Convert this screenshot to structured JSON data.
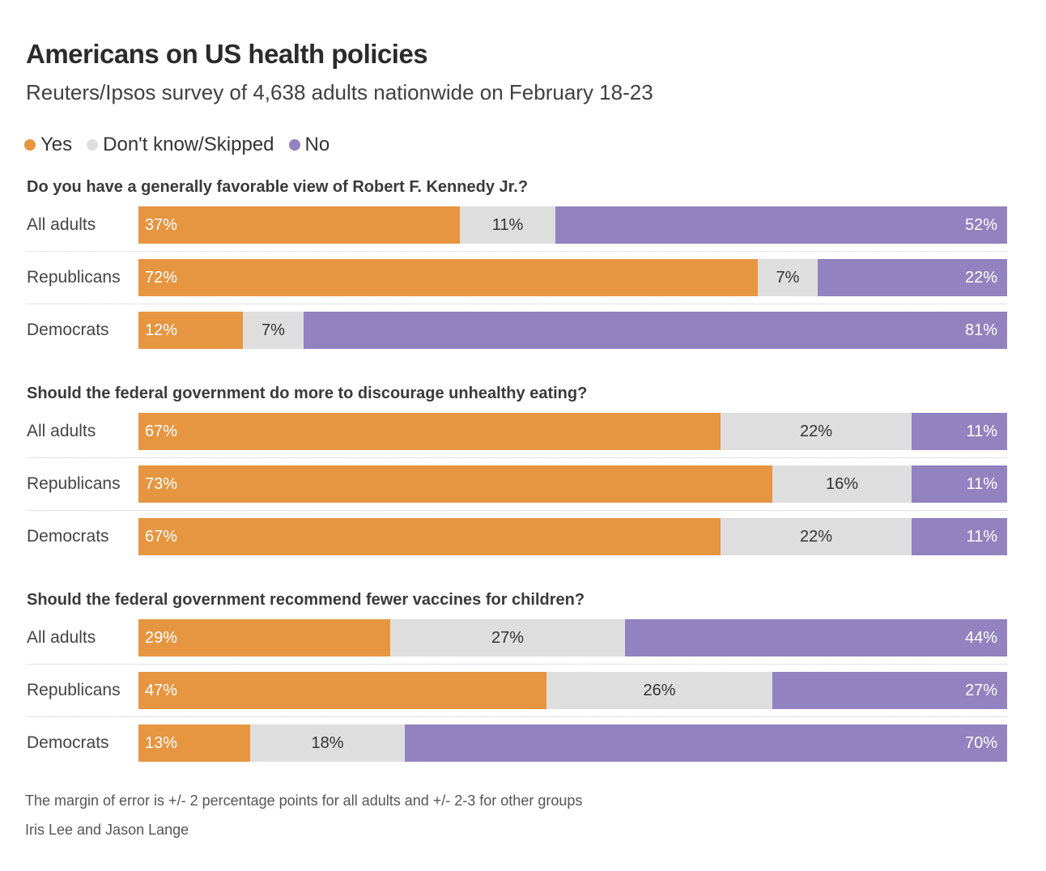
{
  "header": {
    "title": "Americans on US health policies",
    "subtitle": "Reuters/Ipsos survey of 4,638 adults nationwide on February 18-23"
  },
  "legend": [
    {
      "label": "Yes",
      "color": "#e69541"
    },
    {
      "label": "Don't know/Skipped",
      "color": "#dedede"
    },
    {
      "label": "No",
      "color": "#9282bf"
    }
  ],
  "footer": {
    "note": "The margin of error is +/- 2 percentage points for all adults and +/- 2-3 for other groups",
    "credit": "Iris Lee and Jason Lange"
  },
  "chart_data": {
    "type": "bar",
    "orientation": "horizontal-stacked-100",
    "title": "Americans on US health policies",
    "subtitle": "Reuters/Ipsos survey of 4,638 adults nationwide on February 18-23",
    "legend_position": "top-left",
    "series_names": [
      "Yes",
      "Don't know/Skipped",
      "No"
    ],
    "colors": {
      "Yes": "#e69541",
      "Don't know/Skipped": "#dedede",
      "No": "#9282bf"
    },
    "xlim": [
      0,
      100
    ],
    "unit": "%",
    "panels": [
      {
        "question": "Do you have a generally favorable view of Robert F. Kennedy Jr.?",
        "categories": [
          "All adults",
          "Republicans",
          "Democrats"
        ],
        "series": [
          {
            "name": "Yes",
            "values": [
              37,
              72,
              12
            ]
          },
          {
            "name": "Don't know/Skipped",
            "values": [
              11,
              7,
              7
            ]
          },
          {
            "name": "No",
            "values": [
              52,
              22,
              81
            ]
          }
        ]
      },
      {
        "question": "Should the federal government do more to discourage unhealthy eating?",
        "categories": [
          "All adults",
          "Republicans",
          "Democrats"
        ],
        "series": [
          {
            "name": "Yes",
            "values": [
              67,
              73,
              67
            ]
          },
          {
            "name": "Don't know/Skipped",
            "values": [
              22,
              16,
              22
            ]
          },
          {
            "name": "No",
            "values": [
              11,
              11,
              11
            ]
          }
        ]
      },
      {
        "question": "Should the federal government recommend fewer vaccines for children?",
        "categories": [
          "All adults",
          "Republicans",
          "Democrats"
        ],
        "series": [
          {
            "name": "Yes",
            "values": [
              29,
              47,
              13
            ]
          },
          {
            "name": "Don't know/Skipped",
            "values": [
              27,
              26,
              18
            ]
          },
          {
            "name": "No",
            "values": [
              44,
              27,
              70
            ]
          }
        ]
      }
    ]
  }
}
